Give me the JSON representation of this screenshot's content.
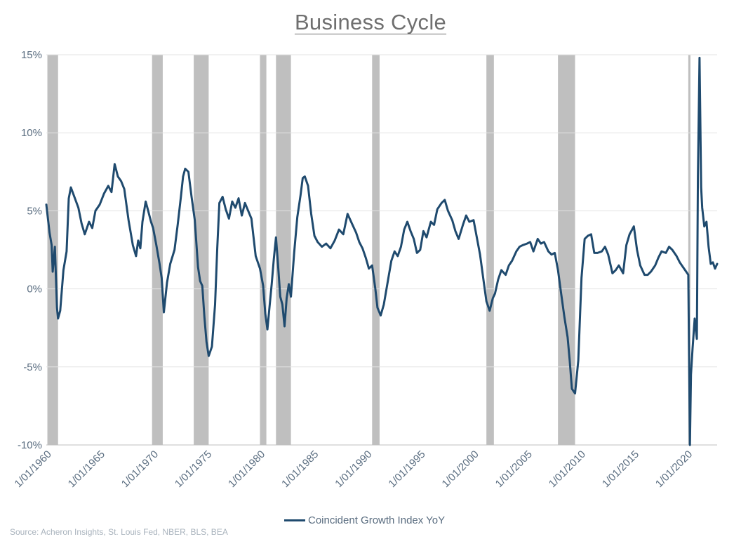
{
  "chart_data": {
    "type": "line",
    "title": "Business Cycle",
    "ylim": [
      -10,
      15
    ],
    "y_ticks": [
      {
        "value": 15,
        "label": "15%"
      },
      {
        "value": 10,
        "label": "10%"
      },
      {
        "value": 5,
        "label": "5%"
      },
      {
        "value": 0,
        "label": "0%"
      },
      {
        "value": -5,
        "label": "-5%"
      },
      {
        "value": -10,
        "label": "-10%"
      }
    ],
    "xlim": [
      1960.0,
      2022.8
    ],
    "x_ticks": [
      {
        "value": 1960,
        "label": "1/01/1960"
      },
      {
        "value": 1965,
        "label": "1/01/1965"
      },
      {
        "value": 1970,
        "label": "1/01/1970"
      },
      {
        "value": 1975,
        "label": "1/01/1975"
      },
      {
        "value": 1980,
        "label": "1/01/1980"
      },
      {
        "value": 1985,
        "label": "1/01/1985"
      },
      {
        "value": 1990,
        "label": "1/01/1990"
      },
      {
        "value": 1995,
        "label": "1/01/1995"
      },
      {
        "value": 2000,
        "label": "1/01/2000"
      },
      {
        "value": 2005,
        "label": "1/01/2005"
      },
      {
        "value": 2010,
        "label": "1/01/2010"
      },
      {
        "value": 2015,
        "label": "1/01/2015"
      },
      {
        "value": 2020,
        "label": "1/01/2020"
      }
    ],
    "grid": true,
    "legend_position": "bottom",
    "recessions": [
      [
        1960.1,
        1961.1
      ],
      [
        1969.9,
        1970.9
      ],
      [
        1973.8,
        1975.2
      ],
      [
        1980.0,
        1980.6
      ],
      [
        1981.5,
        1982.9
      ],
      [
        1990.5,
        1991.2
      ],
      [
        2001.2,
        2001.9
      ],
      [
        2007.9,
        2009.5
      ],
      [
        2020.1,
        2020.3
      ]
    ],
    "series": [
      {
        "name": "Coincident Growth Index YoY",
        "color": "#1f4a6e",
        "x": [
          1960.0,
          1960.3,
          1960.5,
          1960.6,
          1960.8,
          1961.0,
          1961.1,
          1961.3,
          1961.6,
          1961.9,
          1962.1,
          1962.3,
          1963.0,
          1963.3,
          1963.6,
          1964.0,
          1964.3,
          1964.6,
          1965.0,
          1965.4,
          1965.8,
          1966.1,
          1966.4,
          1966.7,
          1967.0,
          1967.3,
          1967.7,
          1968.1,
          1968.4,
          1968.6,
          1968.8,
          1969.0,
          1969.3,
          1969.5,
          1969.8,
          1970.0,
          1970.3,
          1970.6,
          1970.8,
          1971.0,
          1971.3,
          1971.6,
          1972.0,
          1972.3,
          1972.6,
          1972.8,
          1973.0,
          1973.3,
          1973.6,
          1973.9,
          1974.2,
          1974.4,
          1974.6,
          1974.8,
          1975.0,
          1975.2,
          1975.5,
          1975.8,
          1976.0,
          1976.2,
          1976.5,
          1976.8,
          1977.1,
          1977.4,
          1977.7,
          1978.0,
          1978.3,
          1978.6,
          1978.9,
          1979.2,
          1979.6,
          1980.0,
          1980.3,
          1980.5,
          1980.7,
          1980.9,
          1981.1,
          1981.3,
          1981.5,
          1981.7,
          1981.9,
          1982.1,
          1982.3,
          1982.5,
          1982.7,
          1982.9,
          1983.2,
          1983.5,
          1983.8,
          1984.0,
          1984.2,
          1984.5,
          1984.8,
          1985.1,
          1985.4,
          1985.8,
          1986.2,
          1986.6,
          1987.0,
          1987.4,
          1987.8,
          1988.2,
          1988.6,
          1989.0,
          1989.3,
          1989.6,
          1989.9,
          1990.2,
          1990.5,
          1990.8,
          1991.0,
          1991.3,
          1991.6,
          1992.0,
          1992.3,
          1992.6,
          1992.9,
          1993.2,
          1993.5,
          1993.8,
          1994.1,
          1994.4,
          1994.7,
          1995.0,
          1995.3,
          1995.6,
          1996.0,
          1996.3,
          1996.6,
          1997.0,
          1997.3,
          1997.6,
          1998.0,
          1998.3,
          1998.6,
          1999.0,
          1999.3,
          1999.6,
          2000.0,
          2000.3,
          2000.6,
          2000.9,
          2001.2,
          2001.5,
          2001.8,
          2002.0,
          2002.3,
          2002.6,
          2003.0,
          2003.3,
          2003.6,
          2004.0,
          2004.3,
          2004.6,
          2005.0,
          2005.3,
          2005.6,
          2006.0,
          2006.3,
          2006.6,
          2007.0,
          2007.3,
          2007.6,
          2007.9,
          2008.2,
          2008.5,
          2008.8,
          2009.0,
          2009.2,
          2009.5,
          2009.8,
          2010.1,
          2010.4,
          2010.7,
          2011.0,
          2011.3,
          2011.6,
          2012.0,
          2012.3,
          2012.6,
          2013.0,
          2013.3,
          2013.6,
          2014.0,
          2014.3,
          2014.6,
          2015.0,
          2015.3,
          2015.6,
          2016.0,
          2016.3,
          2016.6,
          2017.0,
          2017.3,
          2017.6,
          2018.0,
          2018.3,
          2018.6,
          2019.0,
          2019.3,
          2019.6,
          2019.9,
          2020.1,
          2020.25,
          2020.35,
          2020.5,
          2020.7,
          2020.9,
          2021.0,
          2021.15,
          2021.3,
          2021.4,
          2021.6,
          2021.8,
          2022.0,
          2022.2,
          2022.4,
          2022.6,
          2022.8
        ],
        "y": [
          5.4,
          3.6,
          2.8,
          1.1,
          2.7,
          -1.2,
          -1.9,
          -1.4,
          1.2,
          2.4,
          5.8,
          6.5,
          5.2,
          4.2,
          3.5,
          4.3,
          3.9,
          5.0,
          5.4,
          6.1,
          6.6,
          6.2,
          8.0,
          7.2,
          6.9,
          6.4,
          4.4,
          2.8,
          2.1,
          3.1,
          2.6,
          4.3,
          5.6,
          5.1,
          4.3,
          3.9,
          2.8,
          1.6,
          0.7,
          -1.5,
          0.4,
          1.6,
          2.5,
          4.1,
          5.9,
          7.2,
          7.7,
          7.5,
          5.9,
          4.4,
          1.4,
          0.5,
          0.2,
          -1.8,
          -3.4,
          -4.3,
          -3.7,
          -1.0,
          2.6,
          5.5,
          5.9,
          5.1,
          4.5,
          5.6,
          5.2,
          5.8,
          4.7,
          5.5,
          5.0,
          4.5,
          2.1,
          1.3,
          0.2,
          -1.6,
          -2.6,
          -1.1,
          0.3,
          1.9,
          3.3,
          1.5,
          -0.5,
          -1.0,
          -2.4,
          -0.6,
          0.3,
          -0.5,
          2.3,
          4.6,
          6.0,
          7.1,
          7.2,
          6.6,
          4.8,
          3.4,
          3.0,
          2.7,
          2.9,
          2.6,
          3.1,
          3.8,
          3.5,
          4.8,
          4.2,
          3.6,
          3.0,
          2.6,
          2.0,
          1.3,
          1.5,
          0.0,
          -1.2,
          -1.7,
          -1.0,
          0.6,
          1.8,
          2.4,
          2.1,
          2.7,
          3.8,
          4.3,
          3.7,
          3.2,
          2.3,
          2.5,
          3.7,
          3.3,
          4.3,
          4.1,
          5.1,
          5.5,
          5.7,
          5.0,
          4.4,
          3.7,
          3.2,
          4.1,
          4.7,
          4.3,
          4.4,
          3.3,
          2.2,
          0.7,
          -0.8,
          -1.4,
          -0.6,
          -0.3,
          0.6,
          1.2,
          0.9,
          1.5,
          1.8,
          2.4,
          2.7,
          2.8,
          2.9,
          3.0,
          2.4,
          3.2,
          2.9,
          3.0,
          2.4,
          2.2,
          2.3,
          1.2,
          -0.3,
          -1.8,
          -3.1,
          -4.6,
          -6.4,
          -6.7,
          -4.6,
          0.7,
          3.2,
          3.4,
          3.5,
          2.3,
          2.3,
          2.4,
          2.7,
          2.2,
          1.0,
          1.2,
          1.5,
          1.0,
          2.8,
          3.5,
          4.0,
          2.5,
          1.5,
          0.9,
          0.9,
          1.1,
          1.5,
          2.0,
          2.4,
          2.3,
          2.7,
          2.5,
          2.1,
          1.7,
          1.4,
          1.1,
          0.9,
          -10.0,
          -5.5,
          -3.8,
          -1.9,
          -3.2,
          7.2,
          14.8,
          6.5,
          5.2,
          4.0,
          4.3,
          2.7,
          1.6,
          1.7,
          1.3,
          1.6
        ]
      }
    ],
    "legend_label": "Coincident Growth Index YoY",
    "source": "Source: Acheron Insights, St. Louis Fed, NBER, BLS, BEA"
  }
}
